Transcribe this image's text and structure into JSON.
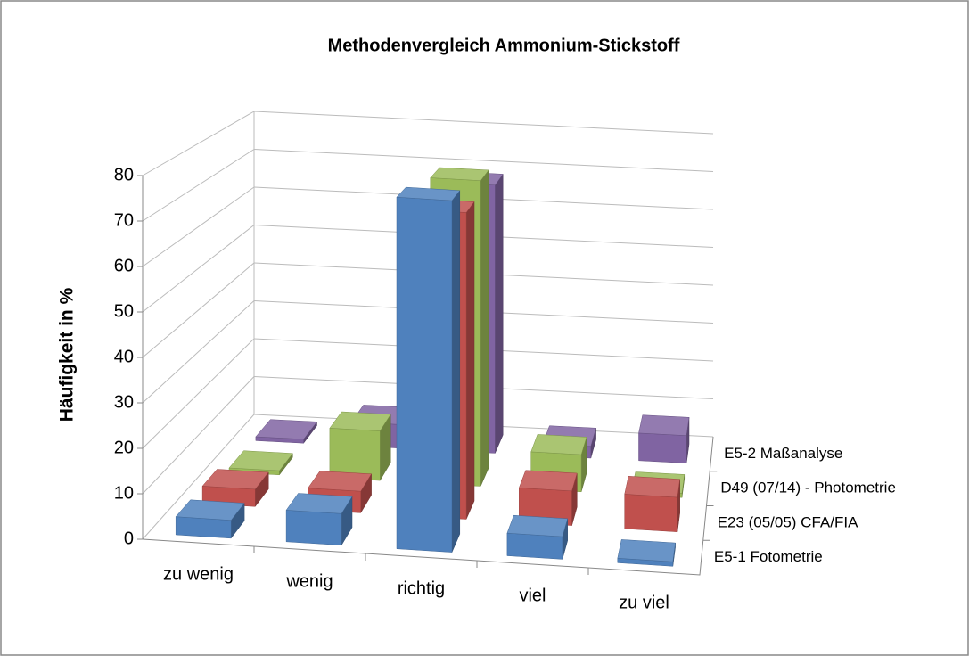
{
  "chart_data": {
    "type": "bar3d",
    "title": "Methodenvergleich Ammonium-Stickstoff",
    "y_label": "Häufigkeit in %",
    "categories": [
      "zu wenig",
      "wenig",
      "richtig",
      "viel",
      "zu viel"
    ],
    "series": [
      {
        "name": "E5-1 Fotometrie",
        "color": "#4f81bd",
        "values": [
          4,
          7,
          78,
          5,
          1
        ]
      },
      {
        "name": "E23 (05/05) CFA/FIA",
        "color": "#c0504d",
        "values": [
          4,
          5,
          71,
          8,
          8
        ]
      },
      {
        "name": "D49 (07/14) - Photometrie",
        "color": "#9bbb59",
        "values": [
          1,
          12,
          74,
          9,
          1
        ]
      },
      {
        "name": "E5-2 Maßanalyse",
        "color": "#8064a2",
        "values": [
          1,
          6,
          68,
          3,
          7
        ]
      }
    ],
    "ylim": [
      0,
      80
    ],
    "yticks": [
      0,
      10,
      20,
      30,
      40,
      50,
      60,
      70,
      80
    ],
    "grid": true
  }
}
